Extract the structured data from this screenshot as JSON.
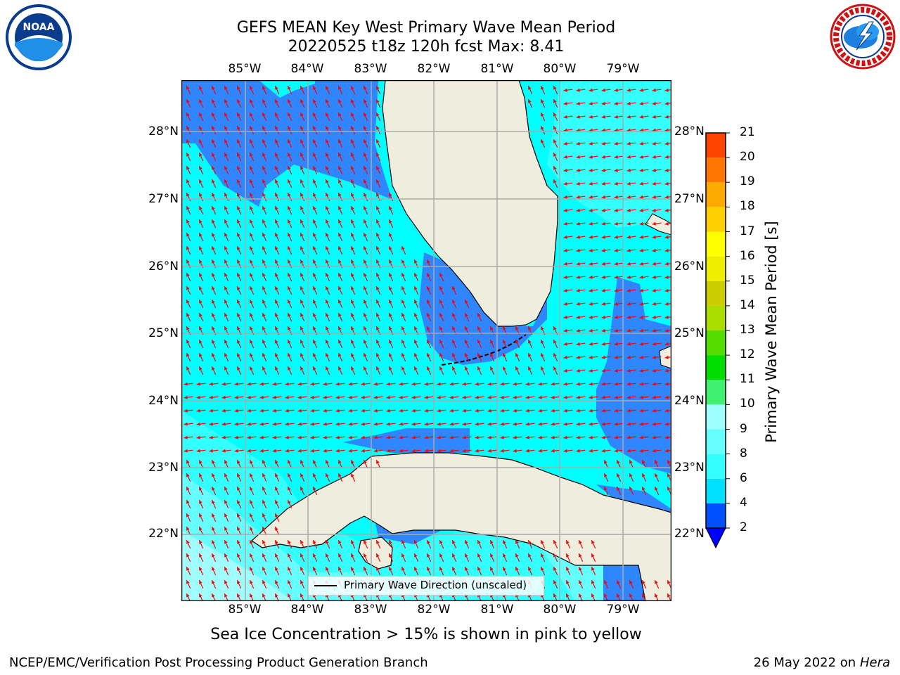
{
  "title_line1": "GEFS MEAN Key West Primary Wave Mean Period",
  "title_line2": "20220525 t18z 120h fcst   Max: 8.41",
  "lon_labels": [
    "85°W",
    "84°W",
    "83°W",
    "82°W",
    "81°W",
    "80°W",
    "79°W"
  ],
  "lat_labels": [
    "28°N",
    "27°N",
    "26°N",
    "25°N",
    "24°N",
    "23°N",
    "22°N"
  ],
  "colorbar": {
    "title": "Primary Wave Mean Period [s]",
    "ticks": [
      "2",
      "4",
      "6",
      "8",
      "9",
      "10",
      "11",
      "12",
      "13",
      "14",
      "15",
      "16",
      "17",
      "18",
      "19",
      "20",
      "21"
    ],
    "colors": [
      "#0050ff",
      "#00e0ff",
      "#33ffff",
      "#66ffff",
      "#a0ffff",
      "#40f070",
      "#00dd00",
      "#55dd00",
      "#aadd00",
      "#cccc00",
      "#eeee00",
      "#ffff00",
      "#ffd000",
      "#ffaa00",
      "#ff7700",
      "#ff4400",
      "#ff1100"
    ]
  },
  "legend_label": "Primary Wave Direction (unscaled)",
  "note": "Sea Ice Concentration > 15% is shown in pink to yellow",
  "footer_left": "NCEP/EMC/Verification Post Processing Product Generation Branch",
  "footer_date": "26 May 2022 on",
  "footer_machine": "Hera",
  "logo_left_text": "NOAA",
  "colors": {
    "land": "#efedde",
    "water_cyan": "#00ffff",
    "water_blue": "#2f86ff",
    "water_light": "#9ffdfd",
    "arrow": "#ff0000"
  }
}
